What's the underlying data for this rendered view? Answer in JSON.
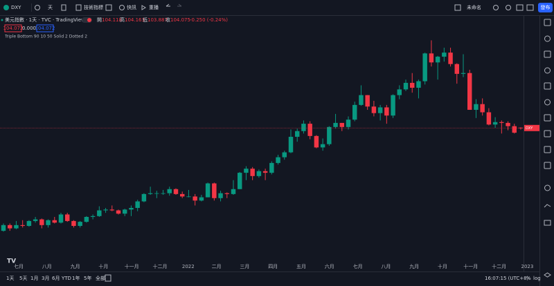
{
  "toolbar": {
    "symbol": "DXY",
    "interval": "天",
    "indicators": "技術指標",
    "alerts": "快訊",
    "replay": "重播",
    "layout_name": "未命名",
    "publish": "發布"
  },
  "legend": {
    "title": "美元指數 · 1天 · TVC · TradingView",
    "ohlc_labels": [
      "開",
      "高",
      "低",
      "收"
    ],
    "change": "-0.250 (-0.24%)",
    "bid": "104.072",
    "spread": "0.000",
    "ask": "104.072",
    "indicator": "Triple Bottom 90 10 50 Solid 2 Dotted 2"
  },
  "chart_data": {
    "type": "candlestick",
    "symbol_tag": "DXY",
    "up_color": "#089981",
    "down_color": "#f23645",
    "ylim": [
      87.2,
      117.2
    ],
    "x_labels": [
      "七月",
      "八月",
      "九月",
      "十月",
      "十一月",
      "十二月",
      "2022",
      "二月",
      "三月",
      "四月",
      "五月",
      "六月",
      "七月",
      "八月",
      "九月",
      "十月",
      "十一月",
      "十二月",
      "2023"
    ],
    "candles": [
      [
        91.5,
        92.4,
        91.4,
        92.2
      ],
      [
        92.2,
        92.4,
        91.5,
        91.8
      ],
      [
        91.8,
        92.7,
        91.7,
        92.2
      ],
      [
        92.2,
        92.8,
        91.9,
        92.1
      ],
      [
        92.1,
        92.8,
        92.0,
        92.7
      ],
      [
        92.7,
        93.2,
        92.5,
        92.9
      ],
      [
        92.9,
        93.0,
        91.8,
        92.2
      ],
      [
        92.2,
        92.9,
        91.9,
        92.8
      ],
      [
        92.8,
        93.2,
        92.4,
        92.5
      ],
      [
        92.5,
        93.7,
        92.4,
        93.5
      ],
      [
        93.5,
        93.7,
        92.6,
        92.7
      ],
      [
        92.7,
        92.8,
        91.9,
        92.1
      ],
      [
        92.1,
        92.7,
        91.9,
        92.6
      ],
      [
        92.6,
        93.3,
        92.5,
        93.2
      ],
      [
        93.2,
        93.5,
        92.9,
        93.3
      ],
      [
        93.3,
        94.5,
        93.2,
        94.0
      ],
      [
        94.0,
        94.3,
        93.7,
        94.1
      ],
      [
        94.1,
        94.6,
        93.9,
        94.0
      ],
      [
        94.0,
        94.1,
        93.5,
        93.6
      ],
      [
        93.6,
        94.2,
        93.3,
        94.1
      ],
      [
        94.1,
        94.6,
        93.3,
        94.3
      ],
      [
        94.3,
        95.3,
        93.9,
        95.1
      ],
      [
        95.1,
        96.1,
        95.0,
        96.0
      ],
      [
        96.0,
        96.9,
        95.9,
        96.1
      ],
      [
        96.1,
        96.4,
        95.5,
        96.1
      ],
      [
        96.1,
        96.5,
        95.9,
        96.1
      ],
      [
        96.1,
        96.9,
        95.8,
        96.6
      ],
      [
        96.6,
        96.7,
        95.9,
        96.0
      ],
      [
        96.0,
        96.3,
        95.5,
        95.7
      ],
      [
        95.7,
        96.5,
        95.6,
        95.7
      ],
      [
        95.7,
        96.0,
        94.6,
        95.2
      ],
      [
        95.2,
        95.9,
        95.1,
        95.6
      ],
      [
        95.6,
        97.4,
        95.6,
        97.3
      ],
      [
        97.3,
        97.4,
        95.2,
        95.5
      ],
      [
        95.5,
        96.4,
        95.1,
        96.1
      ],
      [
        96.1,
        96.2,
        95.5,
        96.0
      ],
      [
        96.0,
        97.7,
        95.9,
        96.6
      ],
      [
        96.6,
        98.7,
        96.6,
        98.6
      ],
      [
        98.6,
        99.4,
        97.7,
        99.1
      ],
      [
        99.1,
        99.3,
        97.7,
        98.2
      ],
      [
        98.2,
        99.0,
        98.0,
        98.8
      ],
      [
        98.8,
        99.1,
        97.7,
        98.6
      ],
      [
        98.6,
        100.0,
        98.4,
        99.8
      ],
      [
        99.8,
        100.8,
        99.6,
        100.5
      ],
      [
        100.5,
        101.3,
        100.2,
        101.1
      ],
      [
        101.1,
        103.9,
        101.0,
        103.0
      ],
      [
        103.0,
        104.0,
        102.4,
        103.7
      ],
      [
        103.7,
        105.0,
        103.4,
        104.6
      ],
      [
        104.6,
        104.9,
        102.7,
        103.1
      ],
      [
        103.1,
        103.2,
        101.6,
        101.7
      ],
      [
        101.7,
        102.8,
        101.3,
        102.1
      ],
      [
        102.1,
        104.3,
        101.9,
        104.2
      ],
      [
        104.2,
        105.8,
        104.0,
        104.7
      ],
      [
        104.7,
        104.7,
        103.7,
        104.2
      ],
      [
        104.2,
        105.5,
        103.9,
        105.1
      ],
      [
        105.1,
        107.3,
        104.9,
        106.9
      ],
      [
        106.9,
        109.3,
        106.8,
        108.1
      ],
      [
        108.1,
        108.1,
        106.3,
        106.7
      ],
      [
        106.7,
        107.4,
        105.5,
        105.9
      ],
      [
        105.9,
        106.9,
        105.0,
        106.6
      ],
      [
        106.6,
        106.9,
        104.6,
        105.6
      ],
      [
        105.6,
        108.2,
        105.3,
        108.1
      ],
      [
        108.1,
        109.3,
        107.6,
        108.8
      ],
      [
        108.8,
        110.0,
        108.6,
        109.6
      ],
      [
        109.6,
        110.8,
        108.4,
        109.0
      ],
      [
        109.0,
        110.0,
        107.7,
        109.8
      ],
      [
        109.8,
        113.3,
        109.4,
        113.2
      ],
      [
        113.2,
        114.8,
        111.6,
        112.1
      ],
      [
        112.1,
        112.9,
        110.0,
        112.8
      ],
      [
        112.8,
        113.9,
        112.2,
        113.3
      ],
      [
        113.3,
        113.9,
        111.6,
        111.9
      ],
      [
        111.9,
        112.0,
        109.5,
        110.7
      ],
      [
        110.7,
        113.1,
        110.3,
        110.8
      ],
      [
        110.8,
        111.2,
        106.3,
        106.3
      ],
      [
        106.3,
        107.6,
        105.3,
        107.0
      ],
      [
        107.0,
        107.7,
        105.6,
        106.0
      ],
      [
        106.0,
        106.5,
        104.4,
        104.5
      ],
      [
        104.5,
        105.4,
        104.1,
        104.8
      ],
      [
        104.8,
        105.0,
        103.4,
        104.7
      ],
      [
        104.7,
        104.9,
        103.8,
        104.3
      ],
      [
        104.3,
        104.6,
        103.4,
        103.5
      ],
      [
        104.118,
        104.163,
        103.887,
        104.075
      ]
    ]
  },
  "bottom_bar": {
    "ranges": [
      "1天",
      "5天",
      "1月",
      "3月",
      "6月",
      "YTD",
      "1年",
      "5年",
      "全部"
    ],
    "clock": "16:07:15 (UTC+8)",
    "percent": "%",
    "log": "log"
  }
}
